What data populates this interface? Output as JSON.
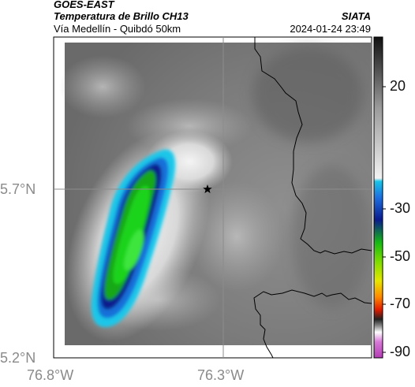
{
  "header": {
    "satellite": "GOES-EAST",
    "product": "Temperatura de Brillo CH13",
    "region": "Vía Medellín - Quibdó 50km",
    "agency": "SIATA",
    "datetime": "2024-01-24 23:49"
  },
  "map": {
    "lat_ticks": [
      "5.7°N",
      "5.2°N"
    ],
    "lon_ticks": [
      "76.8°W",
      "76.3°W"
    ],
    "marker": "star",
    "graticule_color": "#8c8c8c",
    "border_color": "#000000"
  },
  "colorbar": {
    "tick_labels": [
      "20",
      "-30",
      "-50",
      "-70",
      "-90"
    ],
    "colors": {
      "warm_top": "#111111",
      "warm_mid": "#9a9a9a",
      "warm_low": "#f2f2f2",
      "cyan": "#19c4e6",
      "blue": "#0a1a8c",
      "green": "#16b816",
      "yellow": "#e6e600",
      "red": "#e01b00",
      "magenta": "#b33cb3"
    }
  }
}
